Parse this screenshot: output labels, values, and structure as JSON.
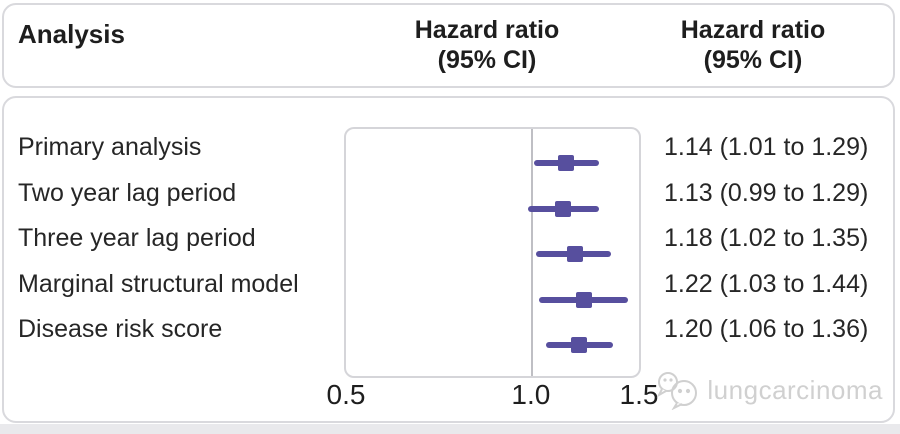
{
  "header": {
    "analysis_label": "Analysis",
    "hazard_col_line1": "Hazard ratio",
    "hazard_col_line2": "(95% CI)"
  },
  "watermark": {
    "text": "lungcarcinoma",
    "icon": "wechat-bubbles-icon"
  },
  "colors": {
    "marker_purple": "#574f9e",
    "ref_line_gray": "#bfbfc4",
    "card_border_gray": "#d9d9dd",
    "watermark_gray": "#d0d0d0"
  },
  "chart_data": {
    "type": "forest",
    "title": "",
    "columns": [
      "Analysis",
      "Hazard ratio (95% CI)",
      "Hazard ratio (95% CI)"
    ],
    "x_axis": {
      "scale": "log",
      "min": 0.5,
      "max": 1.5,
      "ticks": [
        0.5,
        1.0,
        1.5
      ],
      "tick_labels": [
        "0.5",
        "1.0",
        "1.5"
      ],
      "reference_line": 1.0
    },
    "rows": [
      {
        "label": "Primary analysis",
        "hr": 1.14,
        "ci_low": 1.01,
        "ci_high": 1.29,
        "display": "1.14 (1.01 to 1.29)"
      },
      {
        "label": "Two year lag period",
        "hr": 1.13,
        "ci_low": 0.99,
        "ci_high": 1.29,
        "display": "1.13 (0.99 to 1.29)"
      },
      {
        "label": "Three year lag period",
        "hr": 1.18,
        "ci_low": 1.02,
        "ci_high": 1.35,
        "display": "1.18 (1.02 to 1.35)"
      },
      {
        "label": "Marginal structural model",
        "hr": 1.22,
        "ci_low": 1.03,
        "ci_high": 1.44,
        "display": "1.22 (1.03 to 1.44)"
      },
      {
        "label": "Disease risk score",
        "hr": 1.2,
        "ci_low": 1.06,
        "ci_high": 1.36,
        "display": "1.20 (1.06 to 1.36)"
      }
    ]
  }
}
